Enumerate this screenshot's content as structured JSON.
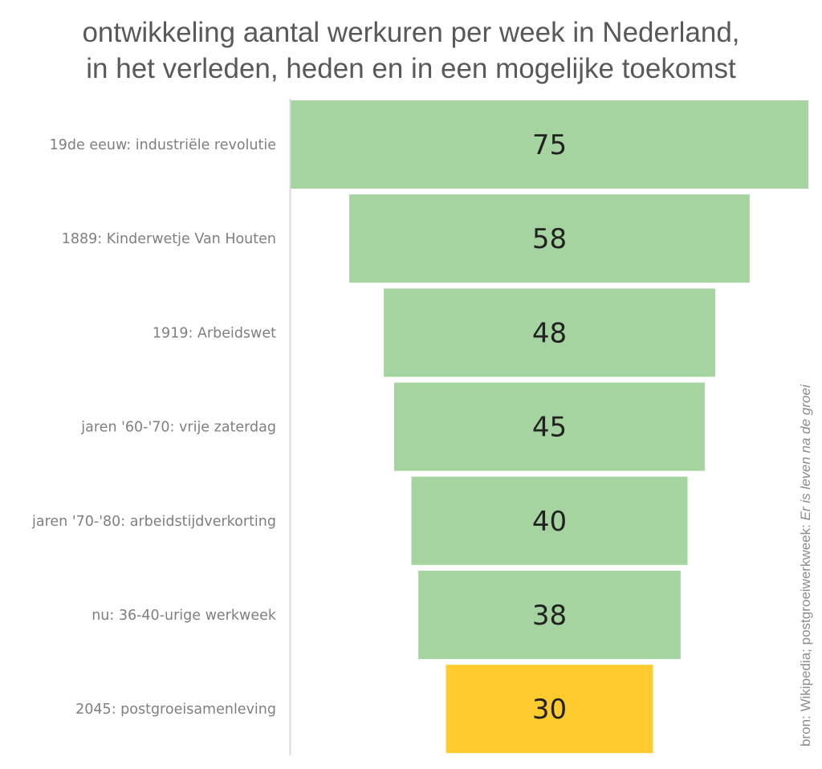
{
  "chart_data": {
    "type": "bar",
    "subtype": "funnel",
    "title": "ontwikkeling aantal werkuren per week in Nederland,",
    "subtitle": "in het verleden, heden en in een mogelijke toekomst",
    "categories": [
      "19de eeuw: industriële revolutie",
      "1889: Kinderwetje Van Houten",
      "1919: Arbeidswet",
      "jaren '60-'70: vrije zaterdag",
      "jaren '70-'80: arbeidstijdverkorting",
      "nu: 36-40-urige werkweek",
      "2045: postgroeisamenleving"
    ],
    "values": [
      75,
      58,
      48,
      45,
      40,
      38,
      30
    ],
    "colors": [
      "#a5d4a0",
      "#a5d4a0",
      "#a5d4a0",
      "#a5d4a0",
      "#a5d4a0",
      "#a5d4a0",
      "#ffcb2f"
    ],
    "data_labels": true,
    "grid": false,
    "source_prefix": "bron: Wikipedia; postgroeiwerkweek: ",
    "source_italic": "Er is leven na de groei"
  }
}
